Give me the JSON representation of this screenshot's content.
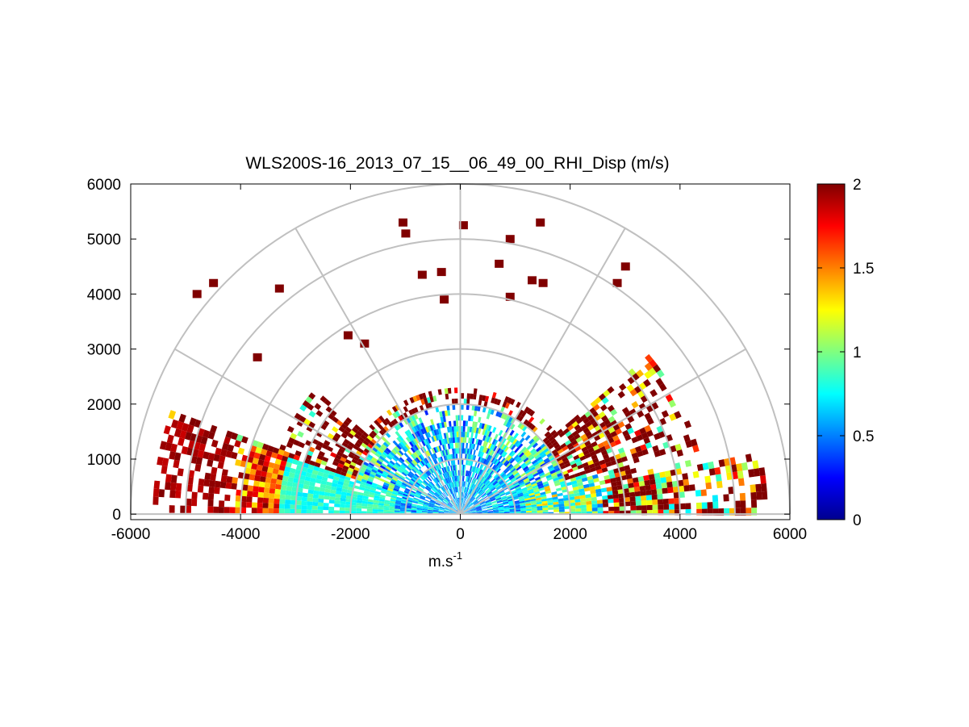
{
  "chart_data": {
    "type": "heatmap",
    "title": "WLS200S-16_2013_07_15__06_49_00_RHI_Disp (m/s)",
    "xlabel": "m.s",
    "xlabel_superscript": "-1",
    "ylabel": "",
    "xlim": [
      -6000,
      6000
    ],
    "ylim": [
      -100,
      6000
    ],
    "x_ticks": [
      "-6000",
      "-4000",
      "-2000",
      "0",
      "2000",
      "4000",
      "6000"
    ],
    "y_ticks": [
      "0",
      "1000",
      "2000",
      "3000",
      "4000",
      "5000",
      "6000"
    ],
    "polar_grid": {
      "range_rings": [
        1000,
        2000,
        3000,
        4000,
        5000,
        6000
      ],
      "radial_lines_deg": [
        0,
        30,
        60,
        90,
        120,
        150,
        180
      ]
    },
    "colorbar": {
      "min": 0,
      "max": 2,
      "ticks": [
        "0",
        "0.5",
        "1",
        "1.5",
        "2"
      ],
      "colormap": "jet"
    },
    "sector_fill": [
      {
        "az_start": 0,
        "az_end": 12,
        "r_max": 5600,
        "level": "high"
      },
      {
        "az_start": 12,
        "az_end": 40,
        "r_max": 4500,
        "level": "mixed"
      },
      {
        "az_start": 40,
        "az_end": 140,
        "r_max": 2300,
        "level": "mixed"
      },
      {
        "az_start": 140,
        "az_end": 160,
        "r_max": 3500,
        "level": "mixed"
      },
      {
        "az_start": 160,
        "az_end": 180,
        "r_max": 5600,
        "level": "high"
      }
    ],
    "grid": true
  }
}
